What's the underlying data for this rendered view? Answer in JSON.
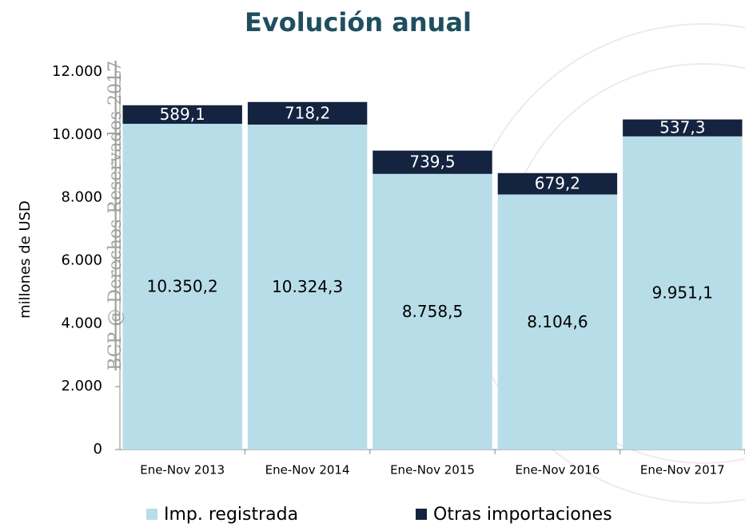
{
  "chart_data": {
    "type": "stacked_bar",
    "title": "Evolución anual",
    "watermark": "BCP @ Derechos Reservados 2017",
    "y_label": "millones de  USD",
    "categories": [
      "Ene-Nov 2013",
      "Ene-Nov 2014",
      "Ene-Nov 2015",
      "Ene-Nov 2016",
      "Ene-Nov 2017"
    ],
    "series": [
      {
        "name": "Imp. registrada",
        "color": "#b7dde8",
        "values": [
          10350.2,
          10324.3,
          8758.5,
          8104.6,
          9951.1
        ],
        "value_labels": [
          "10.350,2",
          "10.324,3",
          "8.758,5",
          "8.104,6",
          "9.951,1"
        ]
      },
      {
        "name": "Otras importaciones",
        "color": "#14233f",
        "values": [
          589.1,
          718.2,
          739.5,
          679.2,
          537.3
        ],
        "value_labels": [
          "589,1",
          "718,2",
          "739,5",
          "679,2",
          "537,3"
        ]
      }
    ],
    "ylim": [
      0,
      12000
    ],
    "yticks": [
      0,
      {
        "value": 2000,
        "label": "2.000"
      },
      {
        "value": 4000,
        "label": "4.000"
      },
      {
        "value": 6000,
        "label": "6.000"
      },
      {
        "value": 8000,
        "label": "8.000"
      },
      {
        "value": 10000,
        "label": "10.000"
      },
      {
        "value": 12000,
        "label": "12.000"
      }
    ],
    "legend": "bottom"
  }
}
